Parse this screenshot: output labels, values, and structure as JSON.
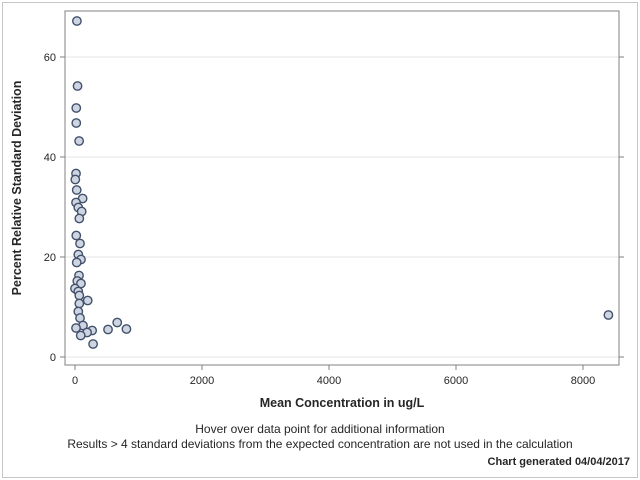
{
  "window": {
    "background": "#ffffff",
    "border_color": "#c6c6c6"
  },
  "chart_data": {
    "type": "scatter",
    "title": "",
    "xlabel": "Mean Concentration in ug/L",
    "ylabel": "Percent Relative Standard Deviation",
    "x_ticks": [
      0,
      2000,
      4000,
      6000,
      8000
    ],
    "y_ticks": [
      0,
      20,
      40,
      60
    ],
    "xlim": [
      -160,
      8560
    ],
    "ylim": [
      -1.6,
      69.2
    ],
    "grid": "horizontal-only",
    "legend": "none",
    "marker": {
      "shape": "circle",
      "fill": "#cdd5e3",
      "stroke": "#42506a"
    },
    "colors": {
      "frame": "#828282",
      "gridline": "#e4e4e4",
      "tick": "#828282",
      "text": "#262626"
    },
    "points": [
      [
        30,
        67.2
      ],
      [
        40,
        54.2
      ],
      [
        20,
        49.8
      ],
      [
        20,
        46.8
      ],
      [
        65,
        43.2
      ],
      [
        16,
        36.7
      ],
      [
        5,
        35.5
      ],
      [
        27,
        33.4
      ],
      [
        120,
        31.7
      ],
      [
        16,
        30.9
      ],
      [
        52,
        29.9
      ],
      [
        105,
        29.1
      ],
      [
        68,
        27.7
      ],
      [
        20,
        24.3
      ],
      [
        79,
        22.7
      ],
      [
        52,
        20.5
      ],
      [
        94,
        19.5
      ],
      [
        27,
        18.9
      ],
      [
        63,
        16.3
      ],
      [
        36,
        15.2
      ],
      [
        94,
        14.7
      ],
      [
        0,
        13.7
      ],
      [
        52,
        13.1
      ],
      [
        68,
        12.3
      ],
      [
        200,
        11.3
      ],
      [
        68,
        10.7
      ],
      [
        52,
        9.1
      ],
      [
        79,
        7.8
      ],
      [
        126,
        6.3
      ],
      [
        16,
        5.8
      ],
      [
        270,
        5.3
      ],
      [
        190,
        4.9
      ],
      [
        90,
        4.3
      ],
      [
        285,
        2.6
      ],
      [
        520,
        5.5
      ],
      [
        665,
        6.9
      ],
      [
        810,
        5.6
      ],
      [
        8400,
        8.4
      ]
    ]
  },
  "footer": {
    "hover_note": "Hover over data point for additional information",
    "exclusion_note": "Results > 4 standard deviations from the expected concentration are not used in the calculation",
    "generated_note": "Chart generated 04/04/2017"
  }
}
